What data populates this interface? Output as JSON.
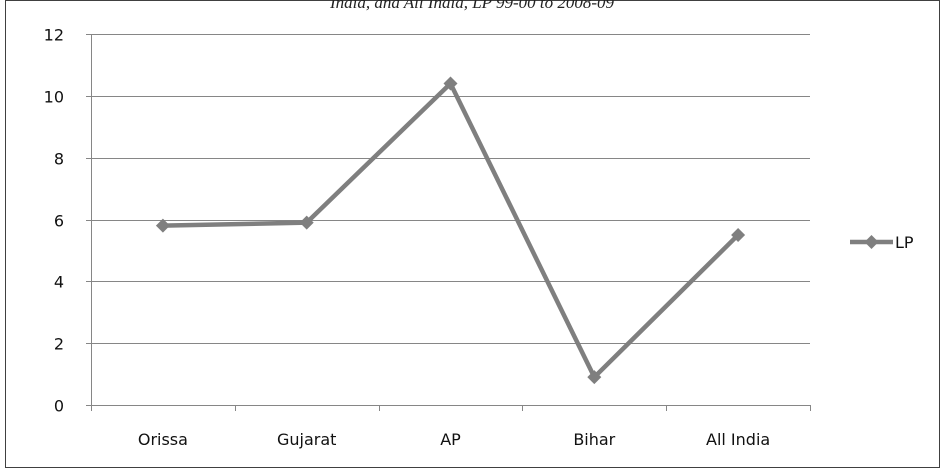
{
  "chart_data": {
    "type": "line",
    "title_clipped": "India, and All India, LP 99-00 to 2008-09",
    "categories": [
      "Orissa",
      "Gujarat",
      "AP",
      "Bihar",
      "All India"
    ],
    "series": [
      {
        "name": "LP",
        "values": [
          5.8,
          5.9,
          10.4,
          0.9,
          5.5
        ],
        "color": "#7f7f7f"
      }
    ],
    "ylim": [
      0,
      12
    ],
    "yticks": [
      "0",
      "2",
      "4",
      "6",
      "8",
      "10",
      "12"
    ],
    "grid": true,
    "legend_position": "right"
  },
  "colors": {
    "series": "#7f7f7f",
    "grid": "#868686",
    "axis": "#868686",
    "border": "#404040"
  }
}
